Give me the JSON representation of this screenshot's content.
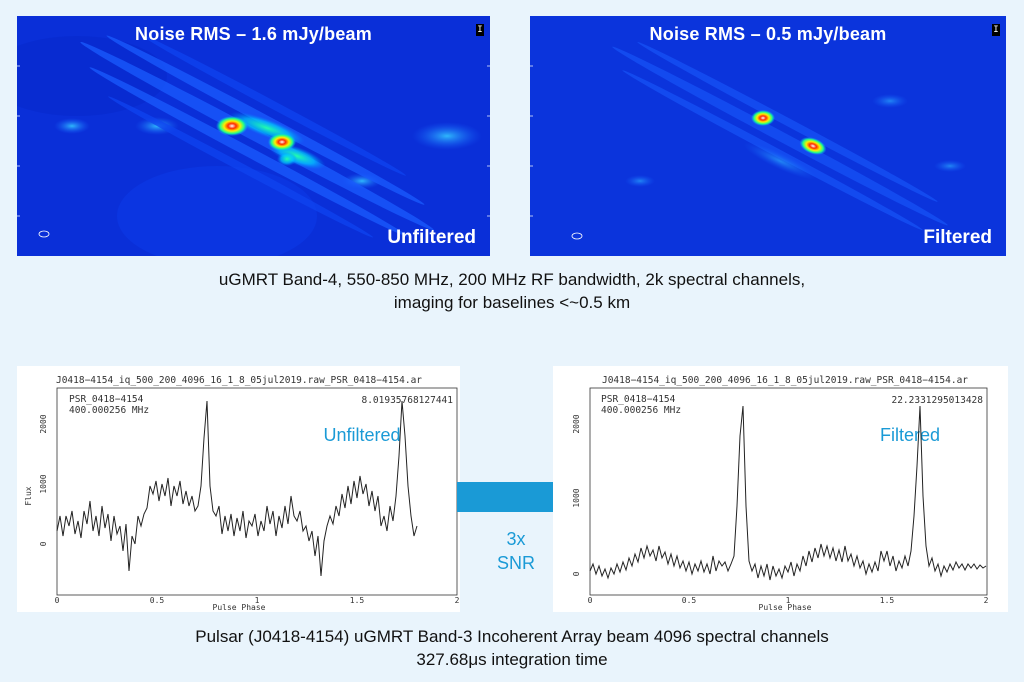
{
  "images": {
    "left": {
      "title": "Noise RMS – 1.6 mJy/beam",
      "tag": "Unfiltered",
      "corner": "I"
    },
    "right": {
      "title": "Noise RMS – 0.5 mJy/beam",
      "tag": "Filtered",
      "corner": "I"
    }
  },
  "caption_top": {
    "line1": "uGMRT Band-4, 550-850 MHz, 200 MHz RF bandwidth, 2k spectral channels,",
    "line2": "imaging for baselines <~0.5 km"
  },
  "plots": {
    "left": {
      "header": "J0418−4154_iq_500_200_4096_16_1_8_05jul2019.raw_PSR_0418−4154.ar",
      "psr": "PSR_0418−4154",
      "freq": "400.000256 MHz",
      "snr_value": "8.01935768127441",
      "label": "Unfiltered",
      "ylabel": "Flux",
      "xlabel": "Pulse Phase",
      "yticks": [
        "2000",
        "1000",
        "0"
      ],
      "xticks": [
        "0",
        "0.5",
        "1",
        "1.5",
        "2"
      ]
    },
    "right": {
      "header": "J0418−4154_iq_500_200_4096_16_1_8_05jul2019.raw_PSR_0418−4154.ar",
      "psr": "PSR_0418−4154",
      "freq": "400.000256 MHz",
      "snr_value": "22.2331295013428",
      "label": "Filtered",
      "xlabel": "Pulse Phase",
      "yticks": [
        "2000",
        "1000",
        "0"
      ],
      "xticks": [
        "0",
        "0.5",
        "1",
        "1.5",
        "2"
      ]
    }
  },
  "arrow_label": {
    "line1": "3x",
    "line2": "SNR"
  },
  "caption_bottom": {
    "line1": "Pulsar (J0418-4154) uGMRT Band-3 Incoherent Array beam 4096 spectral channels",
    "line2": "327.68μs integration time"
  },
  "colors": {
    "accent": "#1a9ad6",
    "image_background": "#0a2fd8",
    "background": "#e9f4fc"
  }
}
